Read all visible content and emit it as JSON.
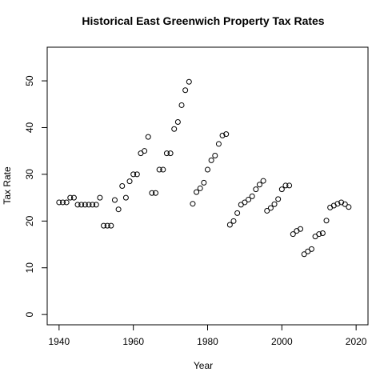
{
  "chart_data": {
    "type": "scatter",
    "title": "Historical East Greenwich Property Tax Rates",
    "x_label": "Year",
    "y_label": "Tax Rate",
    "x": [
      1940,
      1941,
      1942,
      1943,
      1944,
      1945,
      1946,
      1947,
      1948,
      1949,
      1950,
      1951,
      1952,
      1953,
      1954,
      1955,
      1956,
      1957,
      1958,
      1959,
      1960,
      1961,
      1962,
      1963,
      1964,
      1965,
      1966,
      1967,
      1968,
      1969,
      1970,
      1971,
      1972,
      1973,
      1974,
      1975,
      1976,
      1977,
      1978,
      1979,
      1980,
      1981,
      1982,
      1983,
      1984,
      1985,
      1986,
      1987,
      1988,
      1989,
      1990,
      1991,
      1992,
      1993,
      1994,
      1995,
      1996,
      1997,
      1998,
      1999,
      2000,
      2001,
      2002,
      2003,
      2004,
      2005,
      2006,
      2007,
      2008,
      2009,
      2010,
      2011,
      2012,
      2013,
      2014,
      2015,
      2016,
      2017,
      2018
    ],
    "values": [
      24,
      24,
      24,
      25,
      25,
      23.5,
      23.5,
      23.5,
      23.5,
      23.5,
      23.5,
      25,
      19,
      19,
      19,
      24.5,
      22.5,
      27.5,
      25,
      28.5,
      30,
      30,
      34.5,
      35,
      38,
      26,
      26,
      31,
      31,
      34.5,
      34.5,
      39.7,
      41.2,
      44.8,
      48,
      49.8,
      23.7,
      26.2,
      27,
      28.2,
      31,
      33,
      34,
      36.5,
      38.3,
      38.6,
      19.2,
      20,
      21.7,
      23.5,
      24,
      24.6,
      25.3,
      26.8,
      27.8,
      28.6,
      22.2,
      22.8,
      23.6,
      24.7,
      26.8,
      27.6,
      27.6,
      17.2,
      17.9,
      18.3,
      12.9,
      13.5,
      14,
      16.7,
      17.2,
      17.4,
      20.1,
      22.9,
      23.3,
      23.7,
      24,
      23.6,
      23
    ],
    "xlim": [
      1936.8,
      2023.2
    ],
    "ylim": [
      -2.2,
      57.2
    ],
    "xticks": [
      1940,
      1960,
      1980,
      2000,
      2020
    ],
    "yticks": [
      0,
      10,
      20,
      30,
      40,
      50
    ],
    "color": "#000000"
  }
}
